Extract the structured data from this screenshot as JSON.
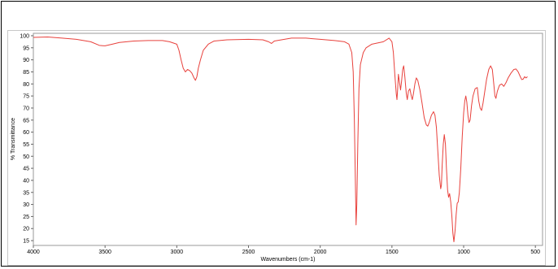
{
  "chart_data": {
    "type": "line",
    "title": "",
    "xlabel": "Wavenumbers (cm-1)",
    "ylabel": "% Transmittance",
    "xlim": [
      4000,
      450
    ],
    "ylim": [
      13,
      101
    ],
    "x_reversed": true,
    "grid": false,
    "x_ticks": [
      4000,
      3500,
      3000,
      2500,
      2000,
      1500,
      1000,
      500
    ],
    "y_ticks": [
      15,
      20,
      25,
      30,
      35,
      40,
      45,
      50,
      55,
      60,
      65,
      70,
      75,
      80,
      85,
      90,
      95,
      100
    ],
    "line_color": "#e8413c",
    "series": [
      {
        "points": [
          [
            4000,
            99.3
          ],
          [
            3900,
            99.5
          ],
          [
            3800,
            99.0
          ],
          [
            3700,
            98.5
          ],
          [
            3600,
            97.5
          ],
          [
            3540,
            96.0
          ],
          [
            3500,
            95.8
          ],
          [
            3450,
            96.5
          ],
          [
            3400,
            97.2
          ],
          [
            3300,
            97.8
          ],
          [
            3200,
            98.0
          ],
          [
            3100,
            98.0
          ],
          [
            3050,
            97.5
          ],
          [
            3000,
            96.5
          ],
          [
            2985,
            94.0
          ],
          [
            2970,
            90.0
          ],
          [
            2955,
            86.5
          ],
          [
            2940,
            85.0
          ],
          [
            2925,
            86.0
          ],
          [
            2910,
            85.5
          ],
          [
            2895,
            84.5
          ],
          [
            2880,
            82.5
          ],
          [
            2870,
            81.5
          ],
          [
            2860,
            83.0
          ],
          [
            2850,
            86.5
          ],
          [
            2835,
            90.0
          ],
          [
            2815,
            94.0
          ],
          [
            2780,
            96.5
          ],
          [
            2740,
            97.8
          ],
          [
            2650,
            98.3
          ],
          [
            2500,
            98.5
          ],
          [
            2400,
            98.3
          ],
          [
            2360,
            97.5
          ],
          [
            2340,
            96.8
          ],
          [
            2320,
            97.8
          ],
          [
            2250,
            98.5
          ],
          [
            2200,
            99.0
          ],
          [
            2100,
            99.0
          ],
          [
            2000,
            98.5
          ],
          [
            1900,
            98.0
          ],
          [
            1830,
            97.5
          ],
          [
            1800,
            96.5
          ],
          [
            1780,
            93.0
          ],
          [
            1770,
            85.0
          ],
          [
            1762,
            65.0
          ],
          [
            1755,
            40.0
          ],
          [
            1750,
            21.5
          ],
          [
            1745,
            30.0
          ],
          [
            1738,
            55.0
          ],
          [
            1730,
            78.0
          ],
          [
            1720,
            88.0
          ],
          [
            1700,
            93.0
          ],
          [
            1680,
            95.0
          ],
          [
            1640,
            96.5
          ],
          [
            1600,
            97.0
          ],
          [
            1560,
            97.5
          ],
          [
            1520,
            99.0
          ],
          [
            1500,
            97.5
          ],
          [
            1490,
            93.0
          ],
          [
            1480,
            84.0
          ],
          [
            1470,
            76.0
          ],
          [
            1465,
            73.5
          ],
          [
            1460,
            78.0
          ],
          [
            1455,
            84.0
          ],
          [
            1448,
            81.0
          ],
          [
            1440,
            77.5
          ],
          [
            1433,
            81.0
          ],
          [
            1425,
            86.0
          ],
          [
            1418,
            87.5
          ],
          [
            1410,
            83.0
          ],
          [
            1400,
            76.0
          ],
          [
            1393,
            73.5
          ],
          [
            1385,
            77.0
          ],
          [
            1375,
            78.0
          ],
          [
            1365,
            75.0
          ],
          [
            1358,
            73.5
          ],
          [
            1350,
            76.0
          ],
          [
            1340,
            80.0
          ],
          [
            1330,
            82.5
          ],
          [
            1320,
            81.5
          ],
          [
            1305,
            77.5
          ],
          [
            1290,
            72.0
          ],
          [
            1275,
            66.0
          ],
          [
            1260,
            63.0
          ],
          [
            1250,
            62.5
          ],
          [
            1240,
            64.0
          ],
          [
            1225,
            67.0
          ],
          [
            1210,
            68.5
          ],
          [
            1200,
            67.0
          ],
          [
            1190,
            62.0
          ],
          [
            1180,
            52.0
          ],
          [
            1170,
            42.0
          ],
          [
            1160,
            36.5
          ],
          [
            1155,
            38.0
          ],
          [
            1150,
            46.0
          ],
          [
            1142,
            55.0
          ],
          [
            1135,
            59.0
          ],
          [
            1127,
            55.0
          ],
          [
            1120,
            45.0
          ],
          [
            1112,
            36.0
          ],
          [
            1105,
            33.0
          ],
          [
            1098,
            34.5
          ],
          [
            1090,
            31.0
          ],
          [
            1082,
            25.0
          ],
          [
            1075,
            18.0
          ],
          [
            1068,
            14.5
          ],
          [
            1060,
            19.0
          ],
          [
            1052,
            26.0
          ],
          [
            1045,
            30.5
          ],
          [
            1038,
            31.0
          ],
          [
            1030,
            35.0
          ],
          [
            1020,
            45.0
          ],
          [
            1010,
            58.0
          ],
          [
            1000,
            68.0
          ],
          [
            992,
            73.0
          ],
          [
            985,
            75.0
          ],
          [
            978,
            72.5
          ],
          [
            970,
            67.0
          ],
          [
            963,
            64.0
          ],
          [
            955,
            65.0
          ],
          [
            945,
            71.0
          ],
          [
            935,
            75.0
          ],
          [
            920,
            78.0
          ],
          [
            905,
            78.5
          ],
          [
            895,
            73.0
          ],
          [
            885,
            70.0
          ],
          [
            875,
            69.0
          ],
          [
            865,
            72.0
          ],
          [
            855,
            76.0
          ],
          [
            840,
            82.0
          ],
          [
            825,
            86.0
          ],
          [
            812,
            87.5
          ],
          [
            800,
            86.0
          ],
          [
            790,
            80.0
          ],
          [
            782,
            75.0
          ],
          [
            775,
            74.0
          ],
          [
            765,
            77.0
          ],
          [
            750,
            79.5
          ],
          [
            735,
            80.0
          ],
          [
            720,
            79.0
          ],
          [
            705,
            80.5
          ],
          [
            690,
            82.5
          ],
          [
            670,
            84.5
          ],
          [
            650,
            86.0
          ],
          [
            635,
            86.2
          ],
          [
            620,
            85.0
          ],
          [
            605,
            83.0
          ],
          [
            595,
            81.8
          ],
          [
            585,
            82.0
          ],
          [
            575,
            83.0
          ],
          [
            565,
            82.5
          ],
          [
            555,
            83.0
          ]
        ]
      }
    ]
  }
}
